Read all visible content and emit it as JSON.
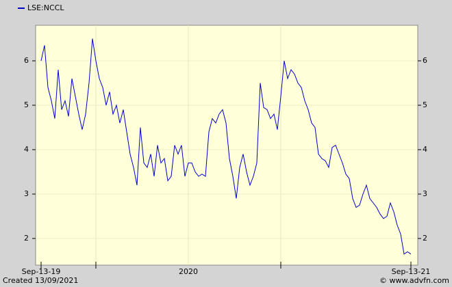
{
  "chart_data": {
    "type": "line",
    "categories": [
      "Sep-13-19",
      null,
      null,
      null,
      null,
      null,
      null,
      null,
      null,
      null,
      null,
      null,
      null,
      null,
      null,
      null,
      null,
      null,
      null,
      null,
      null,
      null,
      null,
      null,
      null,
      null,
      null,
      null,
      null,
      null,
      null,
      null,
      null,
      null,
      null,
      null,
      null,
      null,
      null,
      null,
      null,
      null,
      null,
      "2020",
      null,
      null,
      null,
      null,
      null,
      null,
      null,
      null,
      null,
      null,
      null,
      null,
      null,
      null,
      null,
      null,
      null,
      null,
      null,
      null,
      null,
      null,
      null,
      null,
      null,
      null,
      null,
      null,
      null,
      null,
      null,
      null,
      null,
      null,
      null,
      null,
      null,
      null,
      null,
      null,
      null,
      null,
      null,
      null,
      null,
      null,
      null,
      null,
      null,
      null,
      null,
      null,
      null,
      null,
      null,
      null,
      null,
      null,
      null,
      null,
      null,
      null,
      null,
      null,
      "Sep-13-21"
    ],
    "series": [
      {
        "name": "LSE:NCCL",
        "color": "#0000cc",
        "values": [
          6.0,
          6.35,
          5.4,
          5.1,
          4.7,
          5.8,
          4.9,
          5.1,
          4.75,
          5.6,
          5.2,
          4.8,
          4.45,
          4.8,
          5.5,
          6.5,
          6.0,
          5.6,
          5.4,
          5.0,
          5.3,
          4.8,
          5.0,
          4.6,
          4.9,
          4.4,
          3.9,
          3.6,
          3.2,
          4.5,
          3.7,
          3.6,
          3.9,
          3.4,
          4.1,
          3.7,
          3.8,
          3.3,
          3.4,
          4.1,
          3.9,
          4.1,
          3.4,
          3.7,
          3.7,
          3.5,
          3.4,
          3.45,
          3.4,
          4.4,
          4.7,
          4.6,
          4.8,
          4.9,
          4.6,
          3.8,
          3.4,
          2.9,
          3.6,
          3.9,
          3.5,
          3.2,
          3.4,
          3.7,
          5.5,
          4.95,
          4.9,
          4.7,
          4.8,
          4.45,
          5.2,
          6.0,
          5.6,
          5.8,
          5.7,
          5.5,
          5.4,
          5.1,
          4.9,
          4.6,
          4.5,
          3.9,
          3.8,
          3.75,
          3.6,
          4.05,
          4.1,
          3.9,
          3.7,
          3.45,
          3.35,
          2.9,
          2.7,
          2.75,
          3.0,
          3.2,
          2.9,
          2.8,
          2.7,
          2.55,
          2.45,
          2.5,
          2.8,
          2.6,
          2.3,
          2.1,
          1.65,
          1.7,
          1.65
        ]
      }
    ],
    "ylim": [
      1.4,
      6.8
    ],
    "yticks": [
      2,
      3,
      4,
      5,
      6
    ],
    "grid": true
  },
  "footer": {
    "created": "Created 13/09/2021",
    "source": "© www.advfn.com"
  }
}
